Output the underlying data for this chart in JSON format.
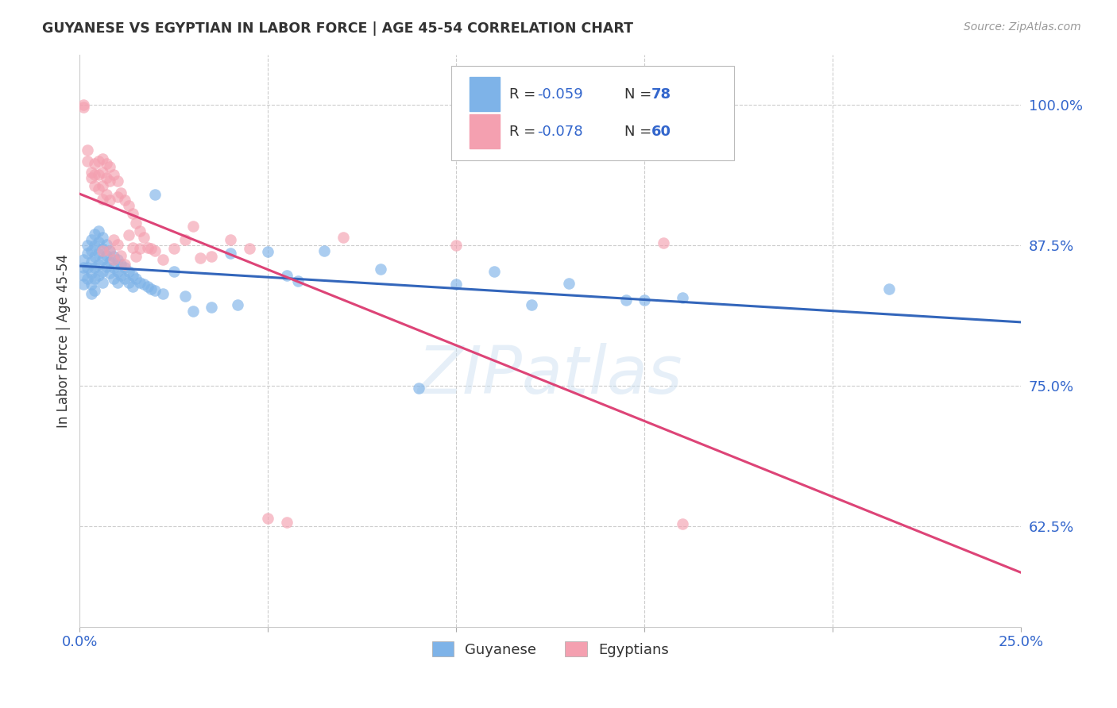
{
  "title": "GUYANESE VS EGYPTIAN IN LABOR FORCE | AGE 45-54 CORRELATION CHART",
  "source": "Source: ZipAtlas.com",
  "ylabel": "In Labor Force | Age 45-54",
  "yticks": [
    0.625,
    0.75,
    0.875,
    1.0
  ],
  "ytick_labels": [
    "62.5%",
    "75.0%",
    "87.5%",
    "100.0%"
  ],
  "xlim": [
    0.0,
    0.25
  ],
  "ylim": [
    0.535,
    1.045
  ],
  "legend_blue_r": "R = -0.059",
  "legend_blue_n": "N = 78",
  "legend_pink_r": "R = -0.078",
  "legend_pink_n": "N = 60",
  "blue_color": "#7EB3E8",
  "pink_color": "#F4A0B0",
  "blue_line_color": "#3366BB",
  "pink_line_color": "#DD4477",
  "watermark": "ZIPatlas",
  "blue_points": [
    [
      0.001,
      0.862
    ],
    [
      0.001,
      0.855
    ],
    [
      0.001,
      0.848
    ],
    [
      0.001,
      0.84
    ],
    [
      0.002,
      0.875
    ],
    [
      0.002,
      0.868
    ],
    [
      0.002,
      0.855
    ],
    [
      0.002,
      0.845
    ],
    [
      0.003,
      0.88
    ],
    [
      0.003,
      0.87
    ],
    [
      0.003,
      0.86
    ],
    [
      0.003,
      0.85
    ],
    [
      0.003,
      0.84
    ],
    [
      0.003,
      0.832
    ],
    [
      0.004,
      0.885
    ],
    [
      0.004,
      0.875
    ],
    [
      0.004,
      0.865
    ],
    [
      0.004,
      0.855
    ],
    [
      0.004,
      0.845
    ],
    [
      0.004,
      0.835
    ],
    [
      0.005,
      0.888
    ],
    [
      0.005,
      0.878
    ],
    [
      0.005,
      0.868
    ],
    [
      0.005,
      0.858
    ],
    [
      0.005,
      0.848
    ],
    [
      0.006,
      0.882
    ],
    [
      0.006,
      0.872
    ],
    [
      0.006,
      0.862
    ],
    [
      0.006,
      0.852
    ],
    [
      0.006,
      0.842
    ],
    [
      0.007,
      0.876
    ],
    [
      0.007,
      0.866
    ],
    [
      0.007,
      0.856
    ],
    [
      0.008,
      0.87
    ],
    [
      0.008,
      0.86
    ],
    [
      0.008,
      0.85
    ],
    [
      0.009,
      0.865
    ],
    [
      0.009,
      0.855
    ],
    [
      0.009,
      0.845
    ],
    [
      0.01,
      0.862
    ],
    [
      0.01,
      0.852
    ],
    [
      0.01,
      0.842
    ],
    [
      0.011,
      0.858
    ],
    [
      0.011,
      0.848
    ],
    [
      0.012,
      0.855
    ],
    [
      0.012,
      0.845
    ],
    [
      0.013,
      0.852
    ],
    [
      0.013,
      0.842
    ],
    [
      0.014,
      0.848
    ],
    [
      0.014,
      0.838
    ],
    [
      0.015,
      0.845
    ],
    [
      0.016,
      0.842
    ],
    [
      0.017,
      0.84
    ],
    [
      0.018,
      0.838
    ],
    [
      0.019,
      0.836
    ],
    [
      0.02,
      0.835
    ],
    [
      0.02,
      0.92
    ],
    [
      0.022,
      0.832
    ],
    [
      0.025,
      0.852
    ],
    [
      0.028,
      0.83
    ],
    [
      0.03,
      0.816
    ],
    [
      0.035,
      0.82
    ],
    [
      0.04,
      0.868
    ],
    [
      0.042,
      0.822
    ],
    [
      0.05,
      0.869
    ],
    [
      0.055,
      0.848
    ],
    [
      0.058,
      0.843
    ],
    [
      0.065,
      0.87
    ],
    [
      0.08,
      0.854
    ],
    [
      0.09,
      0.748
    ],
    [
      0.1,
      0.84
    ],
    [
      0.11,
      0.852
    ],
    [
      0.12,
      0.822
    ],
    [
      0.13,
      0.841
    ],
    [
      0.145,
      0.826
    ],
    [
      0.15,
      0.826
    ],
    [
      0.16,
      0.828
    ],
    [
      0.215,
      0.836
    ]
  ],
  "pink_points": [
    [
      0.001,
      1.0
    ],
    [
      0.001,
      0.998
    ],
    [
      0.002,
      0.96
    ],
    [
      0.002,
      0.95
    ],
    [
      0.003,
      0.94
    ],
    [
      0.003,
      0.935
    ],
    [
      0.004,
      0.948
    ],
    [
      0.004,
      0.938
    ],
    [
      0.004,
      0.928
    ],
    [
      0.005,
      0.95
    ],
    [
      0.005,
      0.938
    ],
    [
      0.005,
      0.925
    ],
    [
      0.006,
      0.952
    ],
    [
      0.006,
      0.94
    ],
    [
      0.006,
      0.928
    ],
    [
      0.006,
      0.916
    ],
    [
      0.006,
      0.87
    ],
    [
      0.007,
      0.948
    ],
    [
      0.007,
      0.935
    ],
    [
      0.007,
      0.92
    ],
    [
      0.008,
      0.945
    ],
    [
      0.008,
      0.932
    ],
    [
      0.008,
      0.915
    ],
    [
      0.008,
      0.87
    ],
    [
      0.009,
      0.938
    ],
    [
      0.009,
      0.88
    ],
    [
      0.009,
      0.862
    ],
    [
      0.01,
      0.932
    ],
    [
      0.01,
      0.918
    ],
    [
      0.01,
      0.876
    ],
    [
      0.011,
      0.922
    ],
    [
      0.011,
      0.866
    ],
    [
      0.012,
      0.915
    ],
    [
      0.012,
      0.858
    ],
    [
      0.013,
      0.91
    ],
    [
      0.013,
      0.884
    ],
    [
      0.014,
      0.903
    ],
    [
      0.014,
      0.873
    ],
    [
      0.015,
      0.895
    ],
    [
      0.015,
      0.865
    ],
    [
      0.016,
      0.888
    ],
    [
      0.016,
      0.872
    ],
    [
      0.017,
      0.882
    ],
    [
      0.018,
      0.873
    ],
    [
      0.019,
      0.872
    ],
    [
      0.02,
      0.87
    ],
    [
      0.022,
      0.862
    ],
    [
      0.025,
      0.872
    ],
    [
      0.028,
      0.88
    ],
    [
      0.03,
      0.892
    ],
    [
      0.032,
      0.864
    ],
    [
      0.035,
      0.865
    ],
    [
      0.04,
      0.88
    ],
    [
      0.045,
      0.872
    ],
    [
      0.05,
      0.632
    ],
    [
      0.055,
      0.628
    ],
    [
      0.07,
      0.882
    ],
    [
      0.155,
      0.877
    ],
    [
      0.1,
      0.875
    ],
    [
      0.16,
      0.627
    ]
  ],
  "background_color": "#ffffff",
  "grid_color": "#cccccc"
}
